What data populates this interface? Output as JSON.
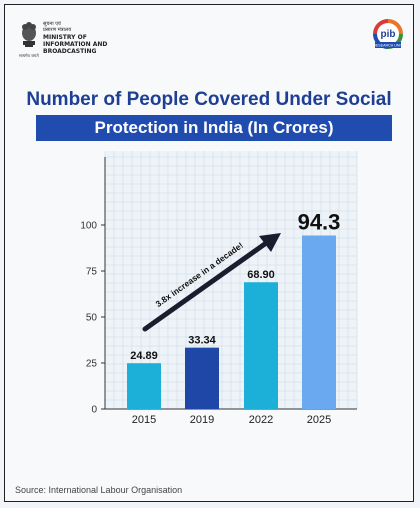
{
  "header": {
    "ministry_hindi_1": "सूचना एवं",
    "ministry_hindi_2": "प्रसारण मंत्रालय",
    "ministry_en_1": "MINISTRY OF",
    "ministry_en_2": "INFORMATION AND",
    "ministry_en_3": "BROADCASTING",
    "emblem_caption": "सत्यमेव जयते",
    "pib_logo_text": "pib",
    "pib_tag": "RESEARCH UNIT"
  },
  "colors": {
    "title": "#1f3f94",
    "title_bar": "#1f4cae",
    "bar_2015": "#1cb0d8",
    "bar_2019": "#1f47a8",
    "bar_2022": "#1cb0d8",
    "bar_2025": "#6aa8f0"
  },
  "chart_data": {
    "type": "bar",
    "title": "Number of People Covered Under Social",
    "subtitle": "Protection in India (In Crores)",
    "categories": [
      "2015",
      "2019",
      "2022",
      "2025"
    ],
    "values": [
      24.89,
      33.34,
      68.9,
      94.3
    ],
    "value_labels": [
      "24.89",
      "33.34",
      "68.90",
      "94.3"
    ],
    "ylim": [
      0,
      100
    ],
    "yticks": [
      "0",
      "25",
      "50",
      "75",
      "100"
    ],
    "grid": true,
    "annotation": "3.8x increase in a decade!"
  },
  "footer": {
    "source": "Source: International Labour Organisation"
  }
}
